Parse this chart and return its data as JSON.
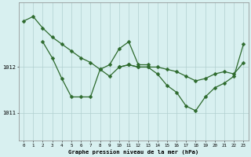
{
  "background_color": "#d8f0f0",
  "grid_color": "#b0d0d0",
  "line_color": "#2d6a2d",
  "xlabel": "Graphe pression niveau de la mer (hPa)",
  "x_ticks": [
    0,
    1,
    2,
    3,
    4,
    5,
    6,
    7,
    8,
    9,
    10,
    11,
    12,
    13,
    14,
    15,
    16,
    17,
    18,
    19,
    20,
    21,
    22,
    23
  ],
  "ylim": [
    1010.4,
    1013.4
  ],
  "yticks": [
    1011,
    1012
  ],
  "series_A_x": [
    0,
    1,
    2,
    3,
    4,
    5,
    6,
    7,
    8,
    9,
    10,
    11,
    12,
    13,
    14,
    15,
    16,
    17,
    18,
    19,
    20,
    21,
    22,
    23
  ],
  "series_A_y": [
    1013.0,
    1013.1,
    1012.85,
    1012.65,
    1012.5,
    1012.35,
    1012.2,
    1012.1,
    1011.95,
    1011.8,
    1012.0,
    1012.05,
    1012.0,
    1012.0,
    1012.0,
    1011.95,
    1011.9,
    1011.8,
    1011.7,
    1011.75,
    1011.85,
    1011.9,
    1011.85,
    1012.1
  ],
  "series_B_x": [
    2,
    3,
    4,
    5,
    6,
    7,
    8,
    9,
    10,
    11,
    12,
    13
  ],
  "series_B_y": [
    1012.55,
    1012.2,
    1011.75,
    1011.35,
    1011.35,
    1011.35,
    1011.95,
    1012.05,
    1012.4,
    1012.55,
    1012.05,
    1012.05
  ],
  "series_C_x": [
    10,
    11,
    12,
    13,
    14,
    15,
    16,
    17,
    18,
    19,
    20,
    21,
    22,
    23
  ],
  "series_C_y": [
    1012.0,
    1012.05,
    1012.0,
    1012.0,
    1011.85,
    1011.6,
    1011.45,
    1011.15,
    1011.05,
    1011.35,
    1011.55,
    1011.65,
    1011.8,
    1012.5
  ]
}
